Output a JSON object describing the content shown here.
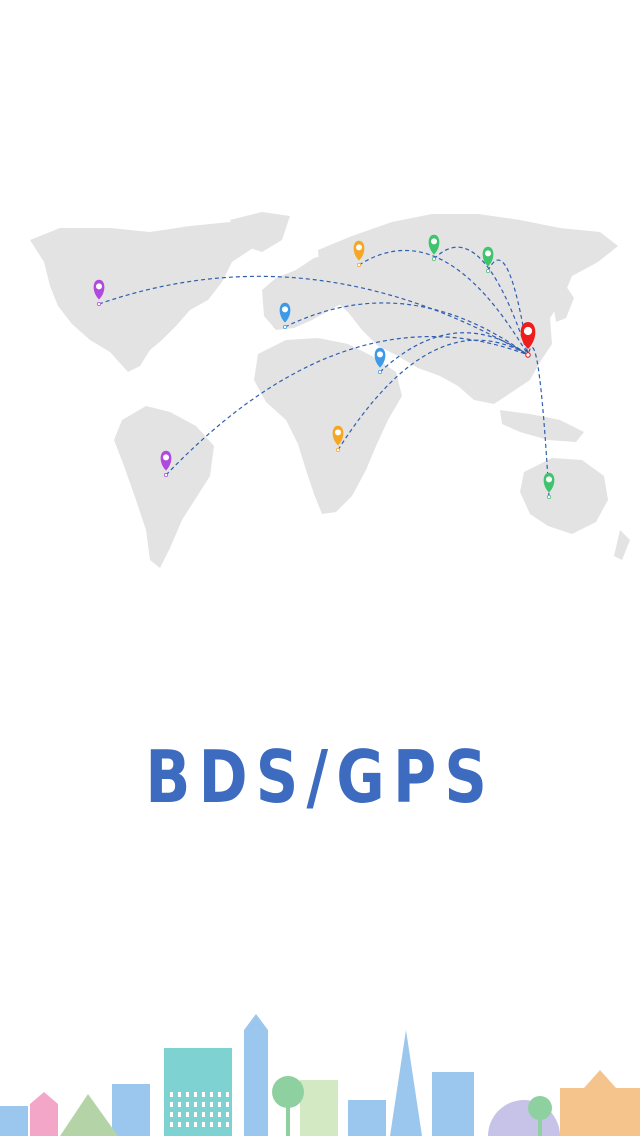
{
  "brand": {
    "title": "BDS/GPS",
    "color": "#3d6bbf"
  },
  "map": {
    "land_color": "#e3e3e3",
    "route_color": "#2f5fb0",
    "hub": {
      "name": "china-hub",
      "color": "#ee1c1c"
    },
    "pins": [
      {
        "name": "usa",
        "color": "#b04adf"
      },
      {
        "name": "europe",
        "color": "#3d9ae8"
      },
      {
        "name": "russia-west",
        "color": "#f5a623"
      },
      {
        "name": "russia-north",
        "color": "#3ec46d"
      },
      {
        "name": "siberia",
        "color": "#3ec46d"
      },
      {
        "name": "middle-east",
        "color": "#3d9ae8"
      },
      {
        "name": "africa",
        "color": "#f5a623"
      },
      {
        "name": "south-america",
        "color": "#b04adf"
      },
      {
        "name": "australia",
        "color": "#3ec46d"
      }
    ]
  },
  "skyline": {
    "colors": [
      "#9bc7ee",
      "#f3a6c8",
      "#b4d4a8",
      "#7fd2d2",
      "#f4c48c",
      "#c7c3e8",
      "#8fd0a0",
      "#d3e9c4"
    ]
  }
}
